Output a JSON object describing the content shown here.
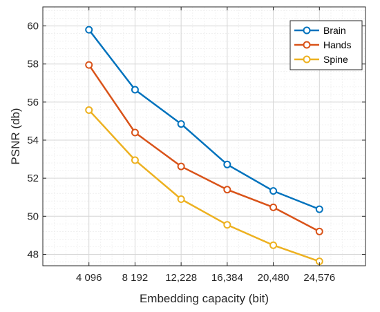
{
  "chart_data": {
    "type": "line",
    "categories": [
      "4 096",
      "8 192",
      "12,228",
      "16,384",
      "20,480",
      "24,576"
    ],
    "xlabel": "Embedding capacity (bit)",
    "ylabel": "PSNR (db)",
    "ylim": [
      47.4,
      61
    ],
    "yticks": [
      48,
      50,
      52,
      54,
      56,
      58,
      60
    ],
    "grid": true,
    "legend_position": "top-right",
    "series": [
      {
        "name": "Brain",
        "color": "#0072BD",
        "values": [
          59.8,
          56.65,
          54.85,
          52.72,
          51.33,
          50.37
        ]
      },
      {
        "name": "Hands",
        "color": "#D95319",
        "values": [
          57.95,
          54.4,
          52.62,
          51.4,
          50.47,
          49.2
        ]
      },
      {
        "name": "Spine",
        "color": "#EDB120",
        "values": [
          55.58,
          52.95,
          50.9,
          49.55,
          48.48,
          47.63
        ]
      }
    ]
  }
}
